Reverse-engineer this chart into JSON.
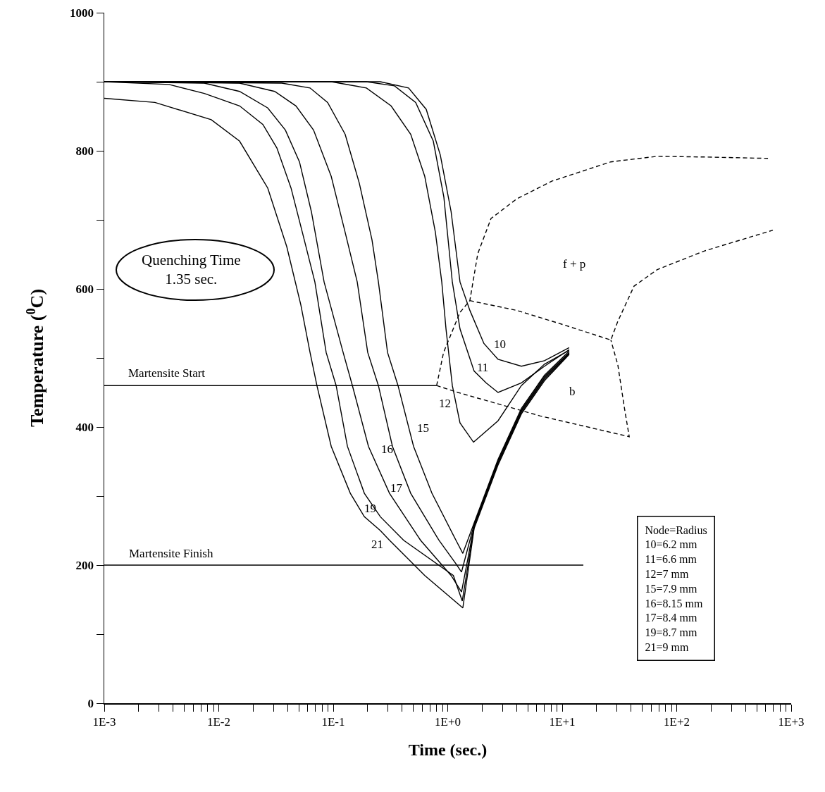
{
  "chart_data": {
    "type": "line",
    "xlabel": "Time (sec.)",
    "ylabel": "Temperature ($^{0}$C)",
    "log": "x",
    "grid": false,
    "marker": "none",
    "xlim": [
      0.001,
      1000
    ],
    "xticks": [
      {
        "value": 0.001,
        "label": "1E-3"
      },
      {
        "value": 0.002,
        "label": null
      },
      {
        "value": 0.003,
        "label": null
      },
      {
        "value": 0.004,
        "label": null
      },
      {
        "value": 0.005,
        "label": null
      },
      {
        "value": 0.006,
        "label": null
      },
      {
        "value": 0.007,
        "label": null
      },
      {
        "value": 0.008,
        "label": null
      },
      {
        "value": 0.009,
        "label": null
      },
      {
        "value": 0.01,
        "label": "1E-2"
      },
      {
        "value": 0.02,
        "label": null
      },
      {
        "value": 0.03,
        "label": null
      },
      {
        "value": 0.04,
        "label": null
      },
      {
        "value": 0.05,
        "label": null
      },
      {
        "value": 0.06,
        "label": null
      },
      {
        "value": 0.07,
        "label": null
      },
      {
        "value": 0.08,
        "label": null
      },
      {
        "value": 0.09,
        "label": null
      },
      {
        "value": 0.1,
        "label": "1E-1"
      },
      {
        "value": 0.2,
        "label": null
      },
      {
        "value": 0.3,
        "label": null
      },
      {
        "value": 0.4,
        "label": null
      },
      {
        "value": 0.5,
        "label": null
      },
      {
        "value": 0.6,
        "label": null
      },
      {
        "value": 0.7,
        "label": null
      },
      {
        "value": 0.8,
        "label": null
      },
      {
        "value": 0.9,
        "label": null
      },
      {
        "value": 1,
        "label": "1E+0"
      },
      {
        "value": 2,
        "label": null
      },
      {
        "value": 3,
        "label": null
      },
      {
        "value": 4,
        "label": null
      },
      {
        "value": 5,
        "label": null
      },
      {
        "value": 6,
        "label": null
      },
      {
        "value": 7,
        "label": null
      },
      {
        "value": 8,
        "label": null
      },
      {
        "value": 9,
        "label": null
      },
      {
        "value": 10,
        "label": "1E+1"
      },
      {
        "value": 20,
        "label": null
      },
      {
        "value": 30,
        "label": null
      },
      {
        "value": 40,
        "label": null
      },
      {
        "value": 50,
        "label": null
      },
      {
        "value": 60,
        "label": null
      },
      {
        "value": 70,
        "label": null
      },
      {
        "value": 80,
        "label": null
      },
      {
        "value": 90,
        "label": null
      },
      {
        "value": 100,
        "label": "1E+2"
      },
      {
        "value": 200,
        "label": null
      },
      {
        "value": 300,
        "label": null
      },
      {
        "value": 400,
        "label": null
      },
      {
        "value": 500,
        "label": null
      },
      {
        "value": 600,
        "label": null
      },
      {
        "value": 700,
        "label": null
      },
      {
        "value": 800,
        "label": null
      },
      {
        "value": 900,
        "label": null
      },
      {
        "value": 1000,
        "label": "1E+3"
      }
    ],
    "ylim": [
      0,
      1000
    ],
    "yticks": [
      0,
      {
        "value": 100,
        "label": null
      },
      200,
      {
        "value": 300,
        "label": null
      },
      400,
      {
        "value": 500,
        "label": null
      },
      600,
      {
        "value": 700,
        "label": null
      },
      800,
      {
        "value": 900,
        "label": null
      },
      1000
    ],
    "series": [
      {
        "color": "#000000",
        "line_style": "solid",
        "x": [
          0.001,
          0.00277,
          0.0086,
          0.0152,
          0.0268,
          0.0393,
          0.0521,
          0.0627,
          0.072,
          0.096,
          0.141,
          0.187,
          0.258,
          0.31,
          0.63,
          1.355,
          1.7,
          2.75,
          4.4,
          7.0,
          11.5
        ],
        "values": [
          876,
          870,
          845,
          814,
          746,
          661,
          577,
          508,
          460,
          372,
          304,
          270,
          250,
          236,
          185,
          138,
          253,
          345,
          419,
          467,
          505
        ]
      },
      {
        "color": "#000000",
        "line_style": "solid",
        "x": [
          0.001,
          0.00368,
          0.00748,
          0.0152,
          0.0243,
          0.0322,
          0.0428,
          0.0543,
          0.0691,
          0.0867,
          0.106,
          0.133,
          0.187,
          0.258,
          0.412,
          1.12,
          1.34,
          1.7,
          2.75,
          4.4,
          7.0,
          11.5
        ],
        "values": [
          900,
          896,
          883,
          865,
          838,
          804,
          746,
          679,
          610,
          508,
          460,
          372,
          304,
          270,
          236,
          185,
          148,
          255,
          347,
          421,
          469,
          506
        ]
      },
      {
        "color": "#000000",
        "line_style": "solid",
        "x": [
          0.001,
          0.00748,
          0.0152,
          0.0268,
          0.0382,
          0.0507,
          0.0644,
          0.0832,
          0.122,
          0.147,
          0.203,
          0.31,
          0.579,
          1.07,
          1.32,
          1.7,
          2.75,
          4.4,
          7.0,
          11.5
        ],
        "values": [
          900,
          898,
          886,
          862,
          830,
          784,
          712,
          610,
          508,
          460,
          372,
          304,
          236,
          185,
          161,
          257,
          349,
          423,
          471,
          507
        ]
      },
      {
        "color": "#000000",
        "line_style": "solid",
        "x": [
          0.001,
          0.0152,
          0.0308,
          0.0472,
          0.0673,
          0.096,
          0.127,
          0.162,
          0.2,
          0.248,
          0.329,
          0.475,
          0.838,
          1.18,
          1.32,
          1.7,
          2.75,
          4.4,
          7.0,
          11.5
        ],
        "values": [
          900,
          898,
          886,
          865,
          830,
          763,
          682,
          610,
          508,
          460,
          372,
          304,
          236,
          202,
          190,
          259,
          351,
          425,
          473,
          508
        ]
      },
      {
        "color": "#000000",
        "line_style": "solid",
        "x": [
          0.001,
          0.0356,
          0.0627,
          0.0893,
          0.127,
          0.169,
          0.218,
          0.248,
          0.298,
          0.368,
          0.503,
          0.728,
          1.18,
          1.355,
          1.7,
          2.75,
          4.4,
          7.0,
          11.5
        ],
        "values": [
          900,
          898,
          891,
          870,
          824,
          753,
          671,
          610,
          508,
          460,
          372,
          304,
          236,
          217,
          261,
          353,
          427,
          475,
          510
        ]
      },
      {
        "color": "#000000",
        "line_style": "solid",
        "x": [
          0.001,
          0.096,
          0.195,
          0.32,
          0.475,
          0.63,
          0.78,
          0.887,
          0.966,
          1.097,
          1.28,
          1.68,
          2.75,
          4.4,
          7.0,
          11.5
        ],
        "values": [
          900,
          900,
          891,
          865,
          824,
          763,
          682,
          610,
          542,
          460,
          406,
          378,
          409,
          460,
          491,
          511
        ]
      },
      {
        "color": "#000000",
        "line_style": "solid",
        "x": [
          0.001,
          0.195,
          0.343,
          0.525,
          0.748,
          0.925,
          1.097,
          1.28,
          1.7,
          2.16,
          2.75,
          4.4,
          7.0,
          11.5
        ],
        "values": [
          900,
          900,
          894,
          870,
          814,
          733,
          610,
          542,
          481,
          464,
          450,
          464,
          488,
          512
        ]
      },
      {
        "color": "#000000",
        "line_style": "solid",
        "x": [
          0.001,
          0.258,
          0.455,
          0.649,
          0.861,
          1.07,
          1.28,
          1.56,
          2.07,
          2.75,
          4.4,
          7.0,
          11.5
        ],
        "values": [
          900,
          900,
          891,
          860,
          794,
          712,
          610,
          569,
          521,
          498,
          488,
          496,
          515
        ]
      },
      {
        "color": "#000000",
        "line_style": "solid",
        "x": [
          0.001,
          0.8
        ],
        "values": [
          460,
          460
        ]
      },
      {
        "color": "#000000",
        "line_style": "solid",
        "x": [
          0.001,
          15.3
        ],
        "values": [
          200,
          200
        ]
      },
      {
        "color": "#000000",
        "line_style": "dashed",
        "x": [
          0.8,
          0.92,
          1.28,
          1.56,
          1.83,
          2.39,
          3.98,
          8.1,
          26.6,
          67.7,
          175,
          627
        ],
        "values": [
          460,
          508,
          566,
          583,
          651,
          702,
          730,
          756,
          784,
          792,
          791,
          789
        ]
      },
      {
        "color": "#000000",
        "line_style": "dashed",
        "x": [
          1.56,
          3.98,
          10.3,
          26.6,
          30.6,
          42.4,
          67.7,
          175,
          692
        ],
        "values": [
          583,
          569,
          548,
          526,
          553,
          604,
          628,
          655,
          685
        ]
      },
      {
        "color": "#000000",
        "line_style": "dashed",
        "x": [
          0.8,
          1.23,
          6.44,
          38.5,
          35.3,
          30.6,
          26.6
        ],
        "values": [
          460,
          450,
          416,
          386,
          423,
          490,
          526
        ]
      }
    ],
    "annotations": [
      "Quenching Time\n1.35 sec.",
      "Node=Radius\n10=6.2 mm\n11=6.6 mm\n12=7 mm\n15=7.9 mm\n16=8.15 mm\n17=8.4 mm\n19=8.7 mm\n21=9 mm",
      "Martensite Start",
      "Martensite Finish",
      "10",
      "11",
      "12",
      "15",
      "16",
      "17",
      "19",
      "21",
      "f + p",
      "b"
    ]
  }
}
